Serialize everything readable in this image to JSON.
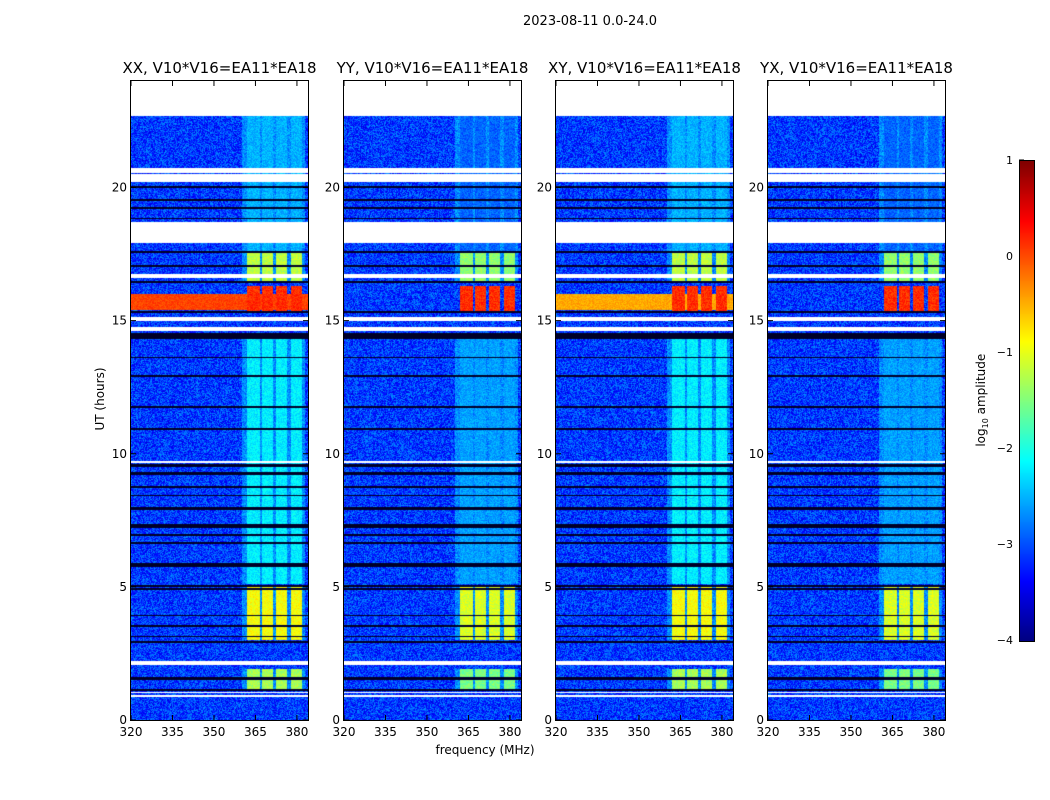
{
  "chart_data": {
    "type": "heatmap",
    "title": "2023-08-11 0.0-24.0",
    "xlabel": "frequency (MHz)",
    "ylabel": "UT (hours)",
    "colorbar_label": "log10 amplitude",
    "colorbar_label_main": "log",
    "colorbar_label_sub": "10",
    "colorbar_label_rest": " amplitude",
    "colormap": "jet",
    "clim": [
      -4,
      1
    ],
    "colorbar_ticks": [
      "1",
      "0",
      "−1",
      "−2",
      "−3",
      "−4"
    ],
    "colorbar_tick_values": [
      1,
      0,
      -1,
      -2,
      -3,
      -4
    ],
    "xlim": [
      320,
      384
    ],
    "ylim": [
      0,
      24
    ],
    "xticks": [
      320,
      335,
      350,
      365,
      380
    ],
    "xtick_labels": [
      "320",
      "335",
      "350",
      "365",
      "380"
    ],
    "yticks": [
      0,
      5,
      10,
      15,
      20
    ],
    "ytick_labels": [
      "0",
      "5",
      "10",
      "15",
      "20"
    ],
    "panels": [
      {
        "title": "XX, V10*V16=EA11*EA18",
        "rfi_scale": 1.0,
        "broadband_flare": 0.2
      },
      {
        "title": "YY, V10*V16=EA11*EA18",
        "rfi_scale": 0.85,
        "broadband_flare": -3.0
      },
      {
        "title": "XY, V10*V16=EA11*EA18",
        "rfi_scale": 1.0,
        "broadband_flare": -0.3
      },
      {
        "title": "YX, V10*V16=EA11*EA18",
        "rfi_scale": 0.85,
        "broadband_flare": -3.0
      }
    ],
    "background_level": -3.1,
    "flagged_blank_hours": [
      [
        22.7,
        24
      ],
      [
        20.2,
        20.5
      ],
      [
        20.55,
        20.75
      ],
      [
        17.9,
        18.7
      ],
      [
        16.6,
        16.75
      ],
      [
        15.0,
        15.15
      ],
      [
        14.6,
        14.75
      ],
      [
        9.65,
        9.72
      ],
      [
        2.05,
        2.2
      ],
      [
        1.0,
        1.05
      ],
      [
        0.85,
        0.95
      ]
    ],
    "zero_rows_hours": [
      [
        20.0,
        20.06
      ],
      [
        19.5,
        19.55
      ],
      [
        19.2,
        19.25
      ],
      [
        18.8,
        18.85
      ],
      [
        17.55,
        17.6
      ],
      [
        17.0,
        17.1
      ],
      [
        16.4,
        16.5
      ],
      [
        15.3,
        15.35
      ],
      [
        14.3,
        14.55
      ],
      [
        13.6,
        13.65
      ],
      [
        12.9,
        12.95
      ],
      [
        11.7,
        11.8
      ],
      [
        10.9,
        10.95
      ],
      [
        9.5,
        9.6
      ],
      [
        9.2,
        9.3
      ],
      [
        8.7,
        8.8
      ],
      [
        8.4,
        8.45
      ],
      [
        7.9,
        8.0
      ],
      [
        7.2,
        7.35
      ],
      [
        6.9,
        7.0
      ],
      [
        6.6,
        6.7
      ],
      [
        5.75,
        5.9
      ],
      [
        5.0,
        5.08
      ],
      [
        4.9,
        4.95
      ],
      [
        3.9,
        3.95
      ],
      [
        3.5,
        3.55
      ],
      [
        3.1,
        3.15
      ],
      [
        2.9,
        2.95
      ],
      [
        1.5,
        1.6
      ],
      [
        1.1,
        1.15
      ]
    ],
    "rfi_channels_mhz": [
      [
        362,
        366.5
      ],
      [
        367.5,
        371.5
      ],
      [
        372.5,
        376.5
      ],
      [
        378,
        382
      ]
    ],
    "rfi_time_segments": [
      {
        "hours": [
          15.3,
          16.3
        ],
        "level": 0.15
      },
      {
        "hours": [
          16.5,
          17.6
        ],
        "level": -1.2
      },
      {
        "hours": [
          3.0,
          5.0
        ],
        "level": -0.9
      },
      {
        "hours": [
          1.1,
          1.9
        ],
        "level": -1.3
      },
      {
        "hours": [
          5.1,
          14.3
        ],
        "level": -2.2
      },
      {
        "hours": [
          17.6,
          22.7
        ],
        "level": -2.5
      }
    ]
  }
}
